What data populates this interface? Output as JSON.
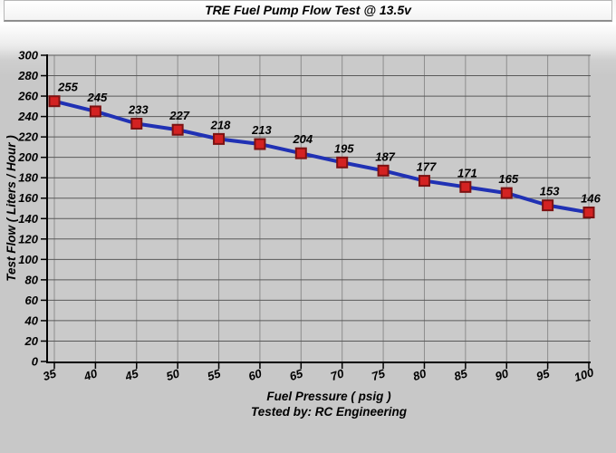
{
  "chart_data": {
    "type": "line",
    "title": "TRE Fuel Pump Flow Test @ 13.5v",
    "x": [
      35,
      40,
      45,
      50,
      55,
      60,
      65,
      70,
      75,
      80,
      85,
      90,
      95,
      100
    ],
    "series": [
      {
        "name": "Test Flow",
        "values": [
          255,
          245,
          233,
          227,
          218,
          213,
          204,
          195,
          187,
          177,
          171,
          165,
          153,
          146
        ]
      }
    ],
    "xlabel": "Fuel Pressure ( psig )",
    "ylabel": "Test Flow ( Liters / Hour )",
    "footer": "Tested by: RC Engineering",
    "ylim": [
      0,
      300
    ],
    "ytick_step": 20,
    "grid": true,
    "legend": "none",
    "data_labels": true,
    "colors": {
      "line": "#2031b4",
      "marker": "#d32222",
      "marker_edge": "#7c1212",
      "plot_bg": "#cacaca",
      "h_grid": "#5a5a5a",
      "v_grid": "#8d8d8d",
      "axis": "#000000",
      "chart_bg": "#c8c8c8"
    }
  }
}
